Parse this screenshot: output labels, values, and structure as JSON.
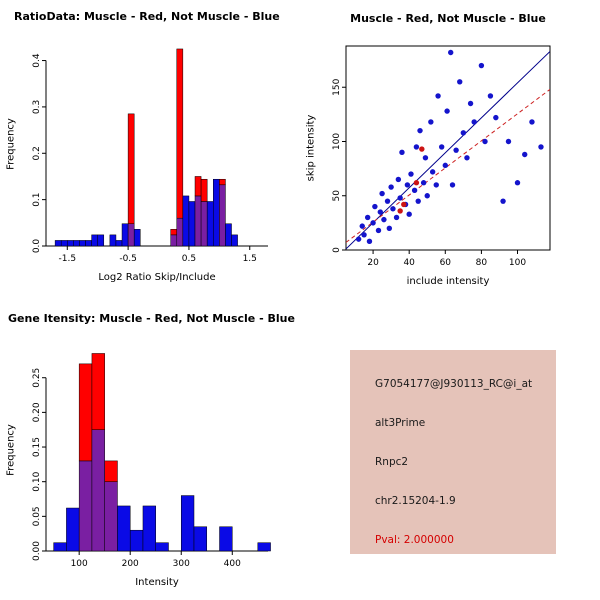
{
  "info_box": {
    "bg_color": "#e5c3b9",
    "lines": [
      {
        "name": "probe-id",
        "text": "G7054177@J930113_RC@i_at",
        "color": "#1a1a1a"
      },
      {
        "name": "event-type",
        "text": "alt3Prime",
        "color": "#1a1a1a"
      },
      {
        "name": "gene-symbol",
        "text": "Rnpc2",
        "color": "#1a1a1a"
      },
      {
        "name": "locus",
        "text": "chr2.15204-1.9",
        "color": "#1a1a1a"
      },
      {
        "name": "pval",
        "text": "Pval: 2.000000",
        "color": "#d40000"
      }
    ]
  },
  "chart_data": [
    {
      "id": "ratio_hist",
      "type": "bar",
      "title": "RatioData: Muscle - Red, Not Muscle - Blue",
      "xlabel": "Log2 Ratio Skip/Include",
      "ylabel": "Frequency",
      "xlim": [
        -1.85,
        1.8
      ],
      "ylim": [
        0,
        0.44
      ],
      "xticks": [
        -1.5,
        -0.5,
        0.5,
        1.5
      ],
      "xtick_labels": [
        "-1.5",
        "-0.5",
        "0.5",
        "1.5"
      ],
      "yticks": [
        0,
        0.1,
        0.2,
        0.3,
        0.4
      ],
      "ytick_labels": [
        "0.0",
        "0.1",
        "0.2",
        "0.3",
        "0.4"
      ],
      "bin_width": 0.1,
      "grid": false,
      "colors": {
        "blue": "#0a0ae6",
        "red": "#ff0000",
        "overlap": "#7a1fa2"
      },
      "series": [
        {
          "name": "Not Muscle (blue)",
          "color_key": "blue",
          "bins": [
            [
              -1.7,
              0.012
            ],
            [
              -1.6,
              0.012
            ],
            [
              -1.5,
              0.012
            ],
            [
              -1.4,
              0.012
            ],
            [
              -1.3,
              0.012
            ],
            [
              -1.2,
              0.012
            ],
            [
              -1.1,
              0.024
            ],
            [
              -1.0,
              0.024
            ],
            [
              -0.8,
              0.024
            ],
            [
              -0.7,
              0.012
            ],
            [
              -0.6,
              0.048
            ],
            [
              -0.5,
              0.048
            ],
            [
              -0.4,
              0.036
            ],
            [
              0.2,
              0.024
            ],
            [
              0.3,
              0.06
            ],
            [
              0.4,
              0.108
            ],
            [
              0.5,
              0.096
            ],
            [
              0.6,
              0.108
            ],
            [
              0.7,
              0.096
            ],
            [
              0.8,
              0.096
            ],
            [
              0.9,
              0.144
            ],
            [
              1.0,
              0.132
            ],
            [
              1.1,
              0.048
            ],
            [
              1.2,
              0.024
            ]
          ]
        },
        {
          "name": "Muscle (red)",
          "color_key": "red",
          "bins": [
            [
              -0.5,
              0.285
            ],
            [
              0.2,
              0.036
            ],
            [
              0.3,
              0.425
            ],
            [
              0.6,
              0.15
            ],
            [
              0.7,
              0.144
            ],
            [
              1.0,
              0.144
            ]
          ]
        }
      ]
    },
    {
      "id": "scatter",
      "type": "scatter",
      "title": "Muscle - Red, Not Muscle - Blue",
      "xlabel": "include intensity",
      "ylabel": "skip intensity",
      "xlim": [
        5,
        118
      ],
      "ylim": [
        0,
        188
      ],
      "xticks": [
        20,
        40,
        60,
        80,
        100
      ],
      "xtick_labels": [
        "20",
        "40",
        "60",
        "80",
        "100"
      ],
      "yticks": [
        0,
        50,
        100,
        150
      ],
      "ytick_labels": [
        "0",
        "50",
        "100",
        "150"
      ],
      "grid": false,
      "colors": {
        "blue": "#1414cc",
        "red": "#cc1414"
      },
      "series": [
        {
          "name": "Not Muscle (blue)",
          "color_key": "blue",
          "points": [
            [
              12,
              10
            ],
            [
              14,
              22
            ],
            [
              15,
              14
            ],
            [
              17,
              30
            ],
            [
              18,
              8
            ],
            [
              20,
              25
            ],
            [
              21,
              40
            ],
            [
              23,
              18
            ],
            [
              24,
              35
            ],
            [
              25,
              52
            ],
            [
              26,
              28
            ],
            [
              28,
              45
            ],
            [
              29,
              20
            ],
            [
              30,
              58
            ],
            [
              31,
              38
            ],
            [
              33,
              30
            ],
            [
              34,
              65
            ],
            [
              35,
              48
            ],
            [
              36,
              90
            ],
            [
              38,
              42
            ],
            [
              39,
              60
            ],
            [
              40,
              33
            ],
            [
              41,
              70
            ],
            [
              43,
              55
            ],
            [
              44,
              95
            ],
            [
              45,
              45
            ],
            [
              46,
              110
            ],
            [
              48,
              62
            ],
            [
              49,
              85
            ],
            [
              50,
              50
            ],
            [
              52,
              118
            ],
            [
              53,
              72
            ],
            [
              55,
              60
            ],
            [
              56,
              142
            ],
            [
              58,
              95
            ],
            [
              60,
              78
            ],
            [
              61,
              128
            ],
            [
              63,
              182
            ],
            [
              64,
              60
            ],
            [
              66,
              92
            ],
            [
              68,
              155
            ],
            [
              70,
              108
            ],
            [
              72,
              85
            ],
            [
              74,
              135
            ],
            [
              76,
              118
            ],
            [
              80,
              170
            ],
            [
              82,
              100
            ],
            [
              85,
              142
            ],
            [
              88,
              122
            ],
            [
              92,
              45
            ],
            [
              95,
              100
            ],
            [
              100,
              62
            ],
            [
              104,
              88
            ],
            [
              108,
              118
            ],
            [
              113,
              95
            ]
          ]
        },
        {
          "name": "Muscle (red)",
          "color_key": "red",
          "points": [
            [
              35,
              36
            ],
            [
              37,
              42
            ],
            [
              44,
              62
            ],
            [
              47,
              93
            ]
          ]
        }
      ],
      "fit_lines": [
        {
          "name": "not-muscle-fit",
          "color": "#00008b",
          "dash": "",
          "x1": 5,
          "y1": 1,
          "x2": 118,
          "y2": 183
        },
        {
          "name": "muscle-fit",
          "color": "#cd2222",
          "dash": "4 3",
          "x1": 5,
          "y1": 7,
          "x2": 118,
          "y2": 148
        }
      ]
    },
    {
      "id": "gene_hist",
      "type": "bar",
      "title": "Gene Itensity: Muscle - Red, Not Muscle - Blue",
      "xlabel": "Intensity",
      "ylabel": "Frequency",
      "xlim": [
        35,
        470
      ],
      "ylim": [
        0,
        0.29
      ],
      "xticks": [
        100,
        200,
        300,
        400
      ],
      "xtick_labels": [
        "100",
        "200",
        "300",
        "400"
      ],
      "yticks": [
        0,
        0.05,
        0.1,
        0.15,
        0.2,
        0.25
      ],
      "ytick_labels": [
        "0.00",
        "0.05",
        "0.10",
        "0.15",
        "0.20",
        "0.25"
      ],
      "bin_width": 25,
      "grid": false,
      "colors": {
        "blue": "#0a0ae6",
        "red": "#ff0000",
        "overlap": "#7a1fa2"
      },
      "series": [
        {
          "name": "Not Muscle (blue)",
          "color_key": "blue",
          "bins": [
            [
              50,
              0.012
            ],
            [
              75,
              0.062
            ],
            [
              100,
              0.13
            ],
            [
              125,
              0.175
            ],
            [
              150,
              0.1
            ],
            [
              175,
              0.065
            ],
            [
              200,
              0.03
            ],
            [
              225,
              0.065
            ],
            [
              250,
              0.012
            ],
            [
              300,
              0.08
            ],
            [
              325,
              0.035
            ],
            [
              375,
              0.035
            ],
            [
              450,
              0.012
            ]
          ]
        },
        {
          "name": "Muscle (red)",
          "color_key": "red",
          "bins": [
            [
              100,
              0.27
            ],
            [
              125,
              0.285
            ],
            [
              150,
              0.13
            ]
          ]
        }
      ]
    }
  ]
}
